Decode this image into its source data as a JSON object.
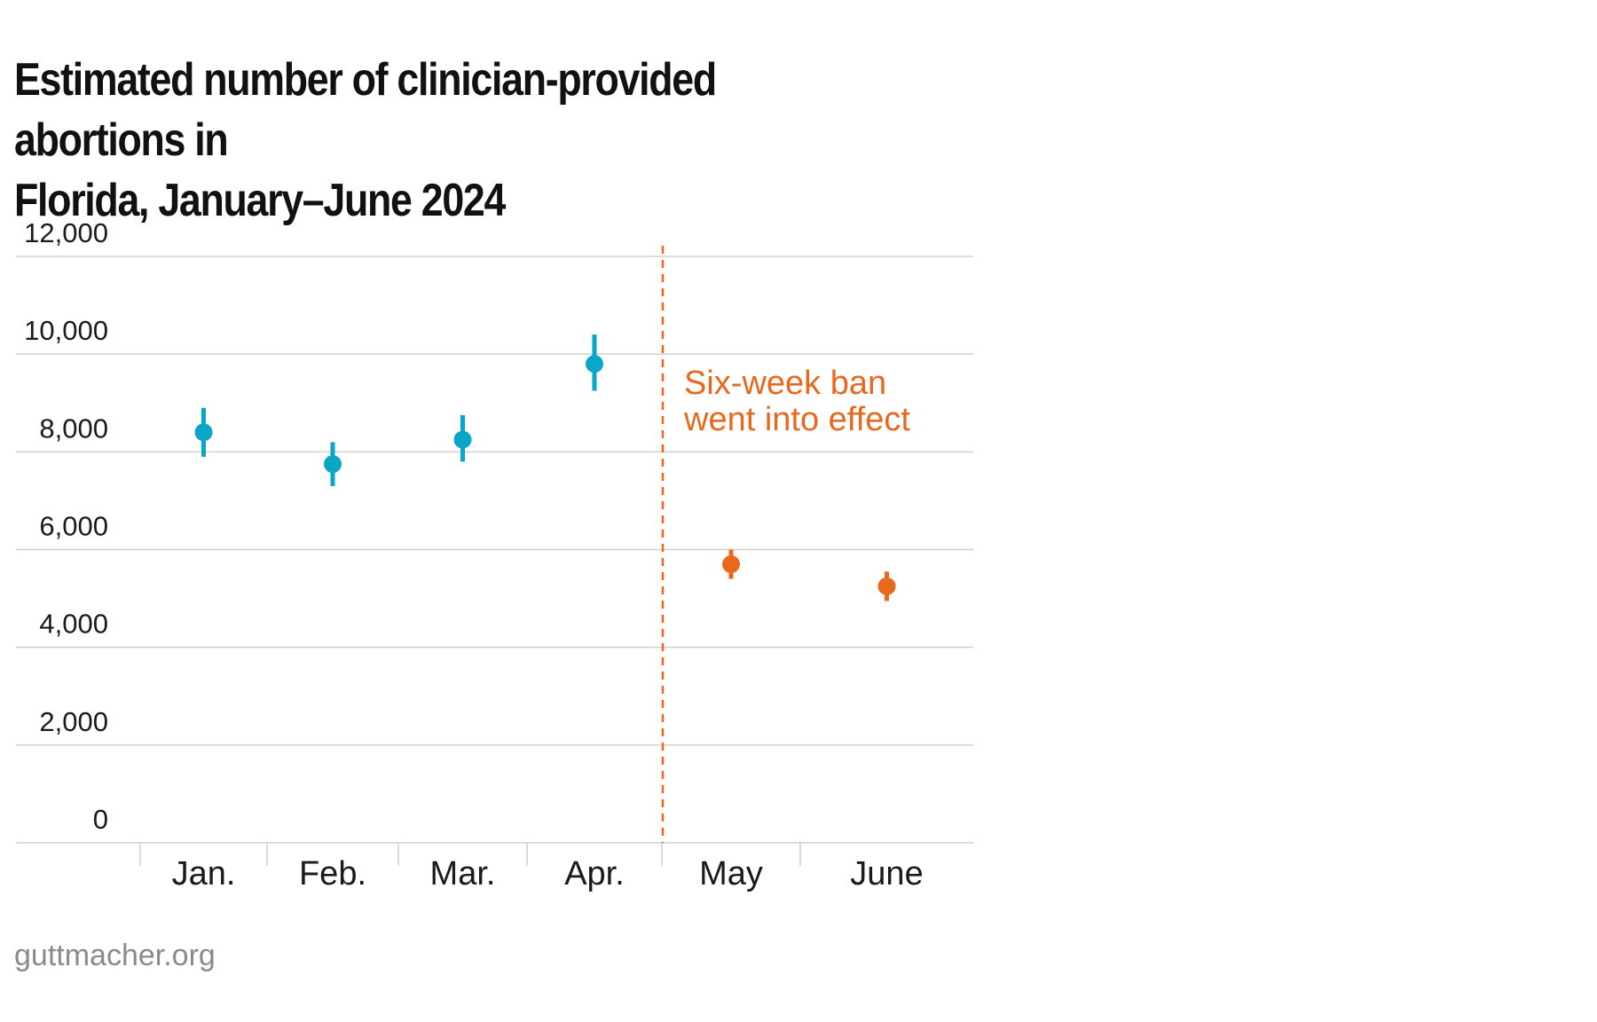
{
  "chart_data": {
    "type": "scatter",
    "title_lines": [
      "Estimated number of clinician-provided abortions in",
      "Florida, January–June 2024"
    ],
    "categories": [
      "Jan.",
      "Feb.",
      "Mar.",
      "Apr.",
      "May",
      "June"
    ],
    "points": [
      {
        "category": "Jan.",
        "value": 8400,
        "low": 7900,
        "high": 8900,
        "period": "before"
      },
      {
        "category": "Feb.",
        "value": 7750,
        "low": 7300,
        "high": 8200,
        "period": "before"
      },
      {
        "category": "Mar.",
        "value": 8250,
        "low": 7800,
        "high": 8750,
        "period": "before"
      },
      {
        "category": "Apr.",
        "value": 9800,
        "low": 9250,
        "high": 10400,
        "period": "before"
      },
      {
        "category": "May",
        "value": 5700,
        "low": 5400,
        "high": 6000,
        "period": "after"
      },
      {
        "category": "June",
        "value": 5250,
        "low": 4950,
        "high": 5550,
        "period": "after"
      }
    ],
    "ylim": [
      0,
      12000
    ],
    "yticks": [
      0,
      2000,
      4000,
      6000,
      8000,
      10000,
      12000
    ],
    "ytick_labels": [
      "0",
      "2,000",
      "4,000",
      "6,000",
      "8,000",
      "10,000",
      "12,000"
    ],
    "grid": true,
    "xlabel": "",
    "ylabel": "",
    "annotation": {
      "after_category": "Apr.",
      "lines": [
        "Six-week ban",
        "went into effect"
      ]
    },
    "colors": {
      "before": "#0aa6c8",
      "after": "#e8691e",
      "grid": "#cfcfcf",
      "text": "#1a1a1a"
    }
  },
  "source": "guttmacher.org"
}
